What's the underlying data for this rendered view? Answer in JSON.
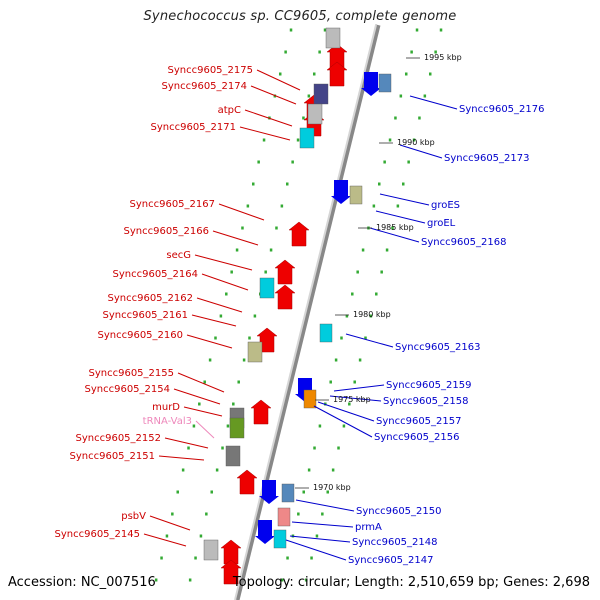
{
  "title": "Synechococcus sp. CC9605, complete genome",
  "accession": "Accession: NC_007516",
  "summary": "Topology: circular; Length: 2,510,659 bp; Genes: 2,698",
  "colors": {
    "forward_label": "#cc0000",
    "reverse_label": "#0000cc",
    "trna_label": "#ee88bb",
    "forward_arrow": "#ee0000",
    "reverse_arrow": "#0000ee",
    "backbone": "#999999",
    "tick_dot": "#33aa33"
  },
  "kbp_ticks": [
    "1995 kbp",
    "1990 kbp",
    "1985 kbp",
    "1980 kbp",
    "1975 kbp",
    "1970 kbp"
  ],
  "forward_genes": [
    {
      "label": "Syncc9605_2175"
    },
    {
      "label": "Syncc9605_2174"
    },
    {
      "label": "atpC"
    },
    {
      "label": "Syncc9605_2171"
    },
    {
      "label": "Syncc9605_2167"
    },
    {
      "label": "Syncc9605_2166"
    },
    {
      "label": "secG"
    },
    {
      "label": "Syncc9605_2164"
    },
    {
      "label": "Syncc9605_2162"
    },
    {
      "label": "Syncc9605_2161"
    },
    {
      "label": "Syncc9605_2160"
    },
    {
      "label": "Syncc9605_2155"
    },
    {
      "label": "Syncc9605_2154"
    },
    {
      "label": "murD"
    },
    {
      "label": "tRNA-Val3"
    },
    {
      "label": "Syncc9605_2152"
    },
    {
      "label": "Syncc9605_2151"
    },
    {
      "label": "psbV"
    },
    {
      "label": "Syncc9605_2145"
    }
  ],
  "reverse_genes": [
    {
      "label": "Syncc9605_2176"
    },
    {
      "label": "Syncc9605_2173"
    },
    {
      "label": "groES"
    },
    {
      "label": "groEL"
    },
    {
      "label": "Syncc9605_2168"
    },
    {
      "label": "Syncc9605_2163"
    },
    {
      "label": "Syncc9605_2159"
    },
    {
      "label": "Syncc9605_2158"
    },
    {
      "label": "Syncc9605_2157"
    },
    {
      "label": "Syncc9605_2156"
    },
    {
      "label": "Syncc9605_2150"
    },
    {
      "label": "prmA"
    },
    {
      "label": "Syncc9605_2148"
    },
    {
      "label": "Syncc9605_2147"
    }
  ]
}
